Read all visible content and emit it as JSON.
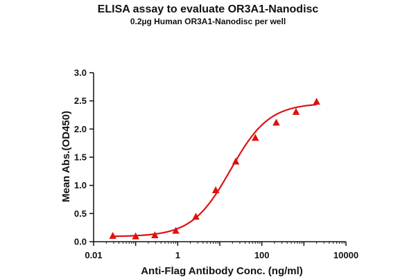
{
  "chart_data": {
    "type": "scatter",
    "title": "ELISA assay to evaluate OR3A1-Nanodisc",
    "subtitle": "0.2µg Human OR3A1-Nanodisc per well",
    "xlabel": "Anti-Flag Antibody Conc. (ng/ml)",
    "ylabel": "Mean Abs.(OD450)",
    "xscale": "log",
    "xlim": [
      0.01,
      10000
    ],
    "ylim": [
      0,
      3.0
    ],
    "xticks": [
      "0.01",
      "1",
      "100",
      "10000"
    ],
    "yticks": [
      "0.0",
      "0.5",
      "1.0",
      "1.5",
      "2.0",
      "2.5",
      "3.0"
    ],
    "grid": false,
    "color": "#dd1111",
    "series": [
      {
        "points": [
          {
            "x": 0.0286,
            "y": 0.1
          },
          {
            "x": 0.1,
            "y": 0.09
          },
          {
            "x": 0.286,
            "y": 0.11
          },
          {
            "x": 0.9,
            "y": 0.19
          },
          {
            "x": 2.7,
            "y": 0.44
          },
          {
            "x": 8.0,
            "y": 0.91
          },
          {
            "x": 24.0,
            "y": 1.42
          },
          {
            "x": 70.0,
            "y": 1.84
          },
          {
            "x": 220.0,
            "y": 2.11
          },
          {
            "x": 650.0,
            "y": 2.3
          },
          {
            "x": 2000.0,
            "y": 2.48
          }
        ],
        "fit": {
          "bottom": 0.09,
          "top": 2.46,
          "ec50": 18.0,
          "hill": 0.95
        }
      }
    ]
  }
}
